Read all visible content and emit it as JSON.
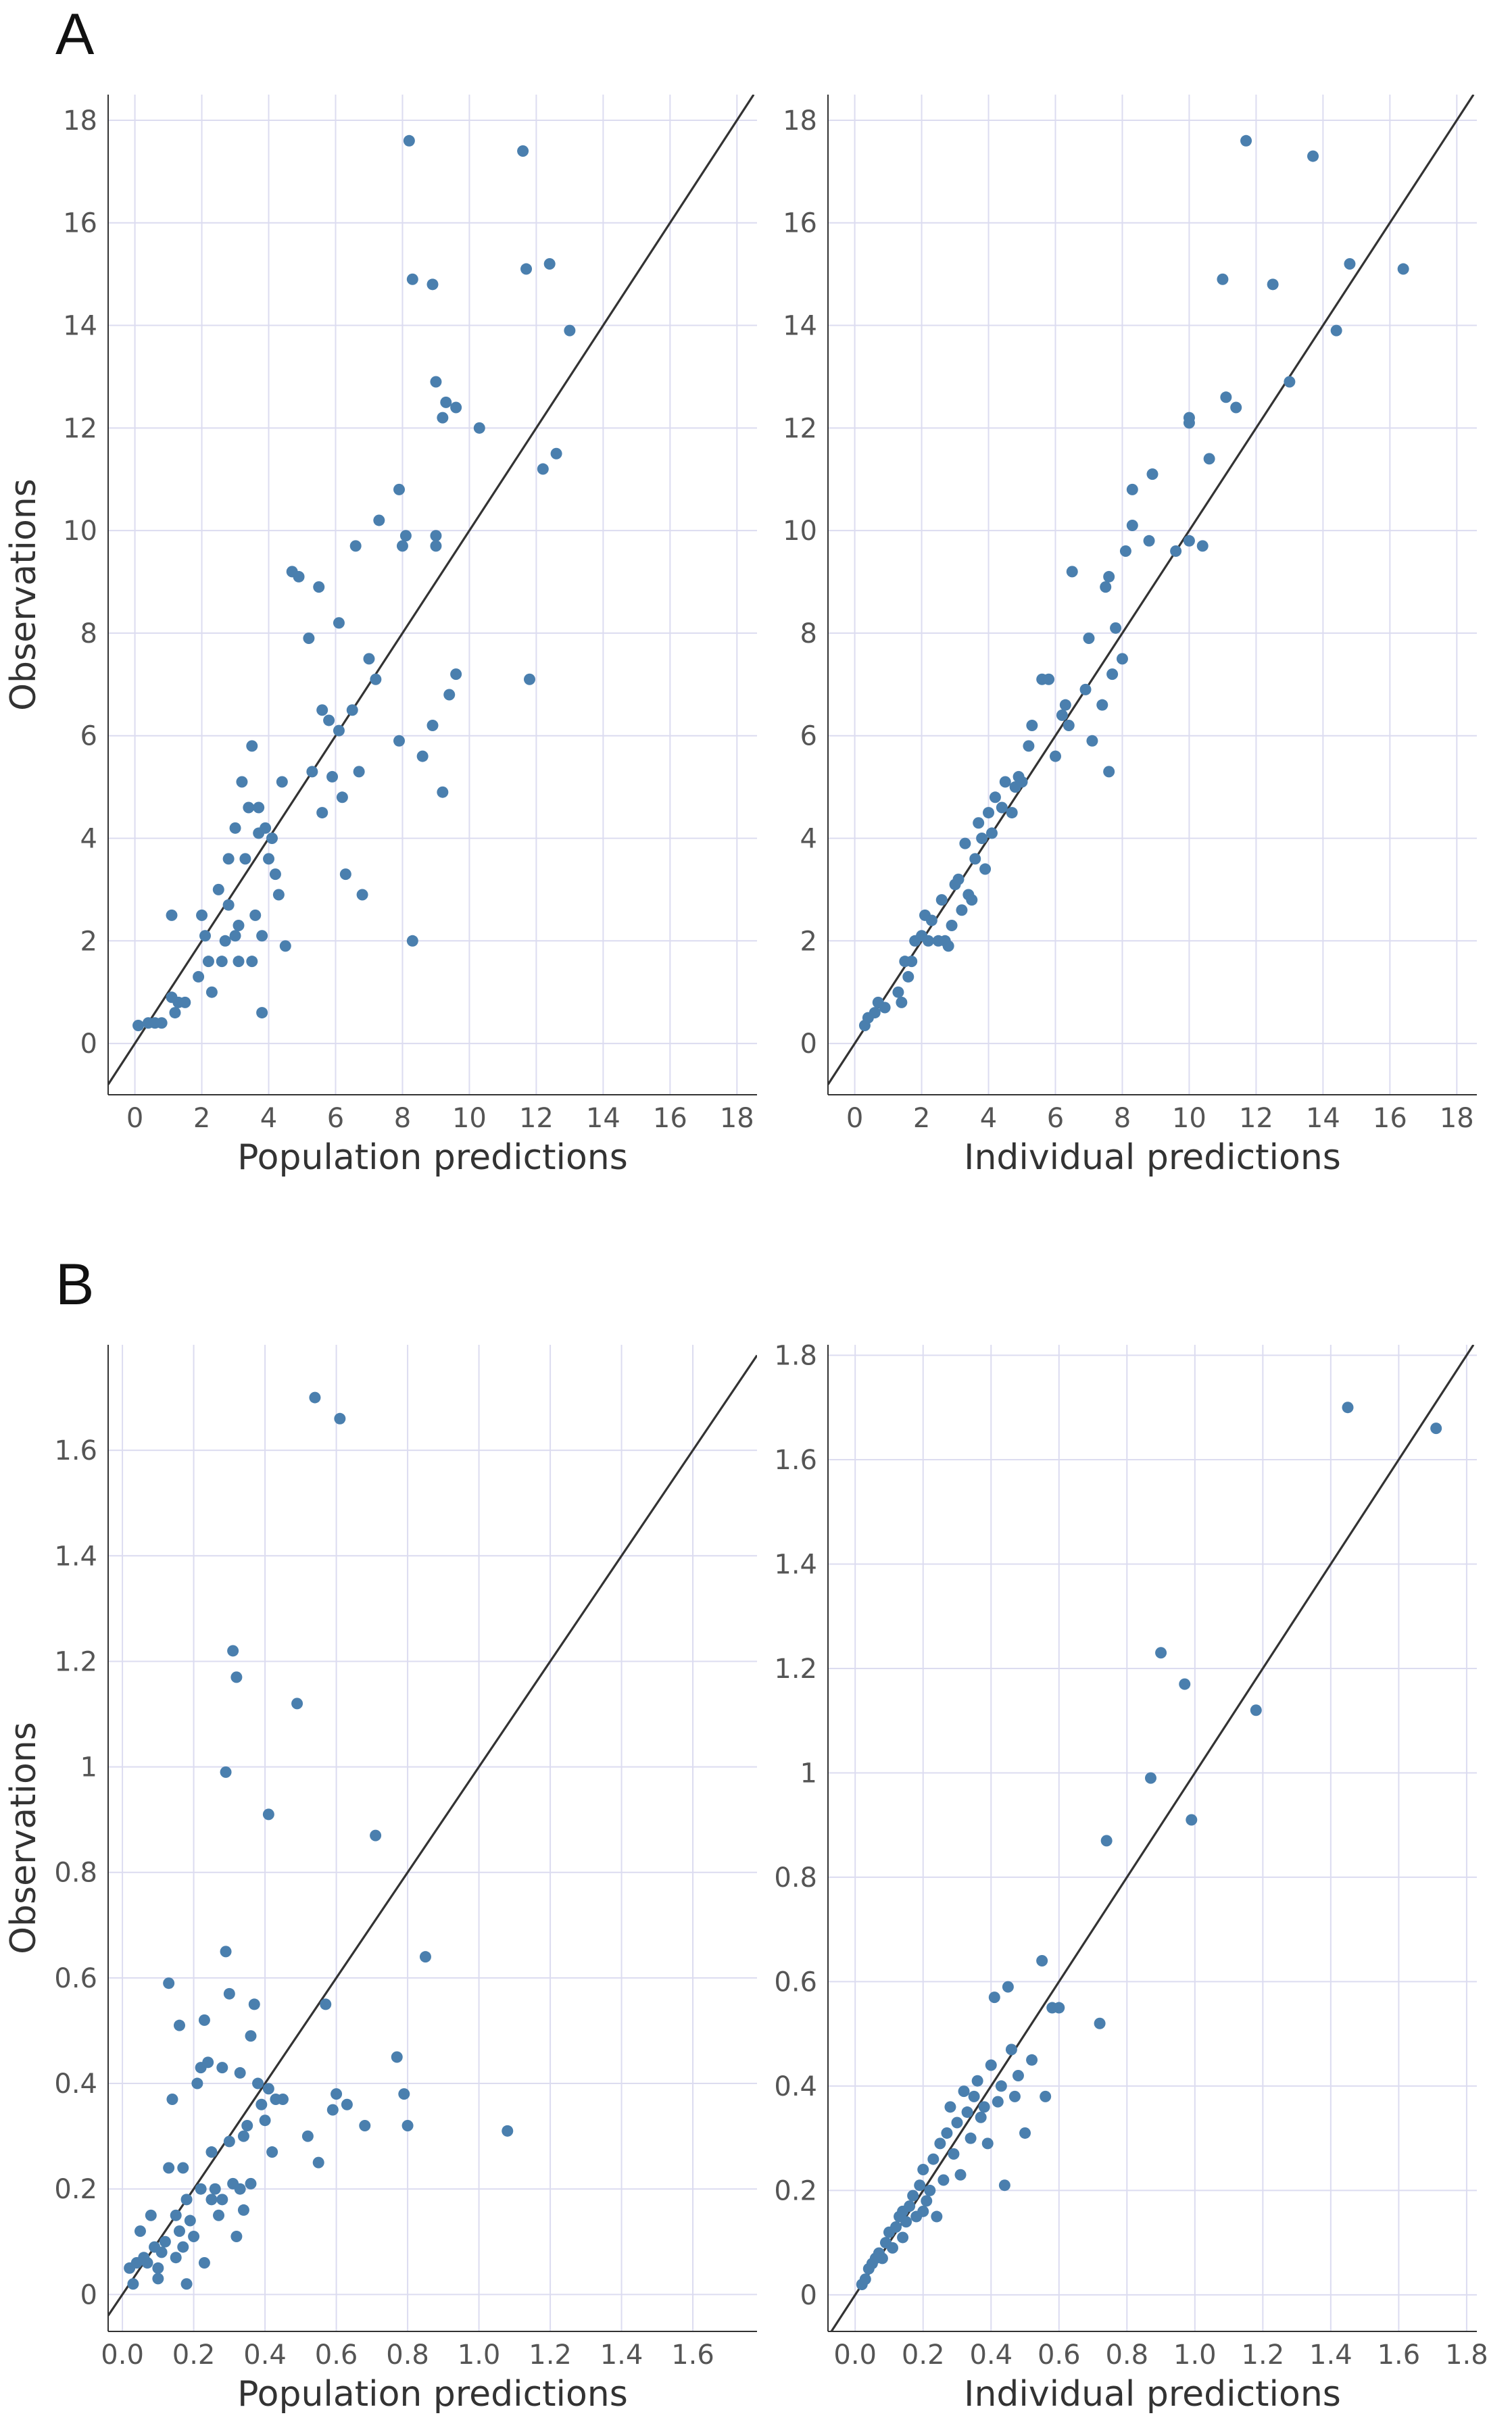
{
  "figure": {
    "panels": [
      {
        "id": "A",
        "label": "A"
      },
      {
        "id": "B",
        "label": "B"
      }
    ]
  },
  "chart_data": [
    {
      "type": "scatter",
      "panel": "A",
      "title": "",
      "xlabel": "Population predictions",
      "ylabel": "Observations",
      "xlim": [
        -0.8,
        18.6
      ],
      "ylim": [
        -1.0,
        18.5
      ],
      "xticks": [
        0,
        2,
        4,
        6,
        8,
        10,
        12,
        14,
        16,
        18
      ],
      "yticks": [
        0,
        2,
        4,
        6,
        8,
        10,
        12,
        14,
        16,
        18
      ],
      "xtick_labels": [
        "0",
        "2",
        "4",
        "6",
        "8",
        "10",
        "12",
        "14",
        "16",
        "18"
      ],
      "ytick_labels": [
        "0",
        "2",
        "4",
        "6",
        "8",
        "10",
        "12",
        "14",
        "16",
        "18"
      ],
      "identity_line": true,
      "grid": true,
      "point_color": "#4a7fae",
      "points": [
        [
          0.1,
          0.35
        ],
        [
          0.4,
          0.4
        ],
        [
          0.6,
          0.4
        ],
        [
          0.8,
          0.4
        ],
        [
          1.1,
          0.9
        ],
        [
          1.2,
          0.6
        ],
        [
          1.3,
          0.8
        ],
        [
          1.5,
          0.8
        ],
        [
          1.1,
          2.5
        ],
        [
          1.9,
          1.3
        ],
        [
          2.0,
          2.5
        ],
        [
          2.1,
          2.1
        ],
        [
          2.2,
          1.6
        ],
        [
          2.3,
          1.0
        ],
        [
          2.5,
          3.0
        ],
        [
          2.6,
          1.6
        ],
        [
          2.7,
          2.0
        ],
        [
          2.8,
          3.6
        ],
        [
          2.8,
          2.7
        ],
        [
          3.0,
          4.2
        ],
        [
          3.0,
          2.1
        ],
        [
          3.1,
          1.6
        ],
        [
          3.1,
          2.3
        ],
        [
          3.2,
          5.1
        ],
        [
          3.3,
          3.6
        ],
        [
          3.4,
          4.6
        ],
        [
          3.5,
          5.8
        ],
        [
          3.5,
          1.6
        ],
        [
          3.6,
          2.5
        ],
        [
          3.7,
          4.6
        ],
        [
          3.7,
          4.1
        ],
        [
          3.8,
          2.1
        ],
        [
          3.8,
          0.6
        ],
        [
          3.9,
          4.2
        ],
        [
          4.0,
          3.6
        ],
        [
          4.1,
          4.0
        ],
        [
          4.2,
          3.3
        ],
        [
          4.3,
          2.9
        ],
        [
          4.4,
          5.1
        ],
        [
          4.5,
          1.9
        ],
        [
          4.7,
          9.2
        ],
        [
          4.9,
          9.1
        ],
        [
          5.2,
          7.9
        ],
        [
          5.3,
          5.3
        ],
        [
          5.5,
          8.9
        ],
        [
          5.6,
          6.5
        ],
        [
          5.6,
          4.5
        ],
        [
          5.8,
          6.3
        ],
        [
          5.9,
          5.2
        ],
        [
          6.1,
          6.1
        ],
        [
          6.1,
          8.2
        ],
        [
          6.2,
          4.8
        ],
        [
          6.3,
          3.3
        ],
        [
          6.5,
          6.5
        ],
        [
          6.6,
          9.7
        ],
        [
          6.7,
          5.3
        ],
        [
          6.8,
          2.9
        ],
        [
          7.0,
          7.5
        ],
        [
          7.2,
          7.1
        ],
        [
          7.3,
          10.2
        ],
        [
          7.9,
          10.8
        ],
        [
          7.9,
          5.9
        ],
        [
          8.0,
          9.7
        ],
        [
          8.1,
          9.9
        ],
        [
          8.2,
          17.6
        ],
        [
          8.3,
          14.9
        ],
        [
          8.3,
          2.0
        ],
        [
          8.6,
          5.6
        ],
        [
          8.9,
          14.8
        ],
        [
          8.9,
          6.2
        ],
        [
          9.0,
          9.9
        ],
        [
          9.0,
          9.7
        ],
        [
          9.0,
          12.9
        ],
        [
          9.2,
          4.9
        ],
        [
          9.2,
          12.2
        ],
        [
          9.3,
          12.5
        ],
        [
          9.4,
          6.8
        ],
        [
          9.6,
          7.2
        ],
        [
          9.6,
          12.4
        ],
        [
          10.3,
          12.0
        ],
        [
          11.6,
          17.4
        ],
        [
          11.7,
          15.1
        ],
        [
          11.8,
          7.1
        ],
        [
          12.2,
          11.2
        ],
        [
          12.4,
          15.2
        ],
        [
          12.6,
          11.5
        ],
        [
          13.0,
          13.9
        ]
      ]
    },
    {
      "type": "scatter",
      "panel": "A",
      "title": "",
      "xlabel": "Individual predictions",
      "ylabel": "",
      "xlim": [
        -0.8,
        18.6
      ],
      "ylim": [
        -1.0,
        18.5
      ],
      "xticks": [
        0,
        2,
        4,
        6,
        8,
        10,
        12,
        14,
        16,
        18
      ],
      "yticks": [
        0,
        2,
        4,
        6,
        8,
        10,
        12,
        14,
        16,
        18
      ],
      "xtick_labels": [
        "0",
        "2",
        "4",
        "6",
        "8",
        "10",
        "12",
        "14",
        "16",
        "18"
      ],
      "ytick_labels": [
        "0",
        "2",
        "4",
        "6",
        "8",
        "10",
        "12",
        "14",
        "16",
        "18"
      ],
      "identity_line": true,
      "grid": true,
      "point_color": "#4a7fae",
      "points": [
        [
          0.3,
          0.35
        ],
        [
          0.4,
          0.5
        ],
        [
          0.6,
          0.6
        ],
        [
          0.7,
          0.8
        ],
        [
          0.9,
          0.7
        ],
        [
          1.3,
          1.0
        ],
        [
          1.4,
          0.8
        ],
        [
          1.5,
          1.6
        ],
        [
          1.6,
          1.3
        ],
        [
          1.7,
          1.6
        ],
        [
          1.8,
          2.0
        ],
        [
          2.0,
          2.1
        ],
        [
          2.1,
          2.5
        ],
        [
          2.2,
          2.0
        ],
        [
          2.3,
          2.4
        ],
        [
          2.5,
          2.0
        ],
        [
          2.6,
          2.8
        ],
        [
          2.7,
          2.0
        ],
        [
          2.8,
          1.9
        ],
        [
          2.9,
          2.3
        ],
        [
          3.0,
          3.1
        ],
        [
          3.1,
          3.2
        ],
        [
          3.2,
          2.6
        ],
        [
          3.3,
          3.9
        ],
        [
          3.4,
          2.9
        ],
        [
          3.5,
          2.8
        ],
        [
          3.6,
          3.6
        ],
        [
          3.7,
          4.3
        ],
        [
          3.8,
          4.0
        ],
        [
          3.9,
          3.4
        ],
        [
          4.0,
          4.5
        ],
        [
          4.1,
          4.1
        ],
        [
          4.2,
          4.8
        ],
        [
          4.4,
          4.6
        ],
        [
          4.5,
          5.1
        ],
        [
          4.7,
          4.5
        ],
        [
          4.8,
          5.0
        ],
        [
          4.9,
          5.2
        ],
        [
          5.0,
          5.1
        ],
        [
          5.2,
          5.8
        ],
        [
          5.3,
          6.2
        ],
        [
          5.6,
          7.1
        ],
        [
          5.8,
          7.1
        ],
        [
          6.0,
          5.6
        ],
        [
          6.2,
          6.4
        ],
        [
          6.3,
          6.6
        ],
        [
          6.4,
          6.2
        ],
        [
          6.5,
          9.2
        ],
        [
          6.9,
          6.9
        ],
        [
          7.0,
          7.9
        ],
        [
          7.1,
          5.9
        ],
        [
          7.4,
          6.6
        ],
        [
          7.5,
          8.9
        ],
        [
          7.6,
          9.1
        ],
        [
          7.6,
          5.3
        ],
        [
          7.7,
          7.2
        ],
        [
          7.8,
          8.1
        ],
        [
          8.0,
          7.5
        ],
        [
          8.1,
          9.6
        ],
        [
          8.3,
          10.8
        ],
        [
          8.3,
          10.1
        ],
        [
          8.8,
          9.8
        ],
        [
          8.9,
          11.1
        ],
        [
          9.6,
          9.6
        ],
        [
          10.0,
          12.1
        ],
        [
          10.0,
          12.2
        ],
        [
          10.0,
          9.8
        ],
        [
          10.4,
          9.7
        ],
        [
          10.6,
          11.4
        ],
        [
          11.0,
          14.9
        ],
        [
          11.1,
          12.6
        ],
        [
          11.4,
          12.4
        ],
        [
          11.7,
          17.6
        ],
        [
          12.5,
          14.8
        ],
        [
          13.0,
          12.9
        ],
        [
          13.7,
          17.3
        ],
        [
          14.4,
          13.9
        ],
        [
          14.8,
          15.2
        ],
        [
          16.4,
          15.1
        ]
      ]
    },
    {
      "type": "scatter",
      "panel": "B",
      "title": "",
      "xlabel": "Population predictions",
      "ylabel": "Observations",
      "xlim": [
        -0.04,
        1.78
      ],
      "ylim": [
        -0.07,
        1.8
      ],
      "xticks": [
        0.0,
        0.2,
        0.4,
        0.6,
        0.8,
        1.0,
        1.2,
        1.4,
        1.6
      ],
      "yticks": [
        0,
        0.2,
        0.4,
        0.6,
        0.8,
        1.0,
        1.2,
        1.4,
        1.6
      ],
      "xtick_labels": [
        "0.0",
        "0.2",
        "0.4",
        "0.6",
        "0.8",
        "1.0",
        "1.2",
        "1.4",
        "1.6"
      ],
      "ytick_labels": [
        "0",
        "0.2",
        "0.4",
        "0.6",
        "0.8",
        "1",
        "1.2",
        "1.4",
        "1.6"
      ],
      "identity_line": true,
      "grid": true,
      "point_color": "#4a7fae",
      "points": [
        [
          0.02,
          0.05
        ],
        [
          0.03,
          0.02
        ],
        [
          0.04,
          0.06
        ],
        [
          0.05,
          0.12
        ],
        [
          0.06,
          0.07
        ],
        [
          0.07,
          0.06
        ],
        [
          0.08,
          0.15
        ],
        [
          0.09,
          0.09
        ],
        [
          0.1,
          0.05
        ],
        [
          0.1,
          0.03
        ],
        [
          0.11,
          0.08
        ],
        [
          0.12,
          0.1
        ],
        [
          0.13,
          0.24
        ],
        [
          0.13,
          0.59
        ],
        [
          0.14,
          0.37
        ],
        [
          0.15,
          0.07
        ],
        [
          0.15,
          0.15
        ],
        [
          0.16,
          0.51
        ],
        [
          0.16,
          0.12
        ],
        [
          0.17,
          0.09
        ],
        [
          0.17,
          0.24
        ],
        [
          0.18,
          0.18
        ],
        [
          0.18,
          0.02
        ],
        [
          0.19,
          0.14
        ],
        [
          0.2,
          0.11
        ],
        [
          0.21,
          0.4
        ],
        [
          0.22,
          0.43
        ],
        [
          0.22,
          0.2
        ],
        [
          0.23,
          0.52
        ],
        [
          0.23,
          0.06
        ],
        [
          0.24,
          0.44
        ],
        [
          0.25,
          0.27
        ],
        [
          0.25,
          0.18
        ],
        [
          0.26,
          0.2
        ],
        [
          0.27,
          0.15
        ],
        [
          0.28,
          0.43
        ],
        [
          0.28,
          0.18
        ],
        [
          0.29,
          0.65
        ],
        [
          0.29,
          0.99
        ],
        [
          0.3,
          0.29
        ],
        [
          0.3,
          0.57
        ],
        [
          0.31,
          1.22
        ],
        [
          0.31,
          0.21
        ],
        [
          0.32,
          1.17
        ],
        [
          0.32,
          0.11
        ],
        [
          0.33,
          0.42
        ],
        [
          0.33,
          0.2
        ],
        [
          0.34,
          0.16
        ],
        [
          0.34,
          0.3
        ],
        [
          0.35,
          0.32
        ],
        [
          0.36,
          0.21
        ],
        [
          0.36,
          0.49
        ],
        [
          0.37,
          0.55
        ],
        [
          0.38,
          0.4
        ],
        [
          0.39,
          0.36
        ],
        [
          0.4,
          0.33
        ],
        [
          0.41,
          0.91
        ],
        [
          0.41,
          0.39
        ],
        [
          0.42,
          0.27
        ],
        [
          0.43,
          0.37
        ],
        [
          0.45,
          0.37
        ],
        [
          0.49,
          1.12
        ],
        [
          0.52,
          0.3
        ],
        [
          0.54,
          1.7
        ],
        [
          0.55,
          0.25
        ],
        [
          0.57,
          0.55
        ],
        [
          0.59,
          0.35
        ],
        [
          0.6,
          0.38
        ],
        [
          0.61,
          1.66
        ],
        [
          0.63,
          0.36
        ],
        [
          0.68,
          0.32
        ],
        [
          0.71,
          0.87
        ],
        [
          0.77,
          0.45
        ],
        [
          0.79,
          0.38
        ],
        [
          0.8,
          0.32
        ],
        [
          0.85,
          0.64
        ],
        [
          1.08,
          0.31
        ]
      ]
    },
    {
      "type": "scatter",
      "panel": "B",
      "title": "",
      "xlabel": "Individual predictions",
      "ylabel": "",
      "xlim": [
        -0.08,
        1.83
      ],
      "ylim": [
        -0.07,
        1.82
      ],
      "xticks": [
        0.0,
        0.2,
        0.4,
        0.6,
        0.8,
        1.0,
        1.2,
        1.4,
        1.6,
        1.8
      ],
      "yticks": [
        0,
        0.2,
        0.4,
        0.6,
        0.8,
        1.0,
        1.2,
        1.4,
        1.6,
        1.8
      ],
      "xtick_labels": [
        "0.0",
        "0.2",
        "0.4",
        "0.6",
        "0.8",
        "1.0",
        "1.2",
        "1.4",
        "1.6",
        "1.8"
      ],
      "ytick_labels": [
        "0",
        "0.2",
        "0.4",
        "0.6",
        "0.8",
        "1",
        "1.2",
        "1.4",
        "1.6",
        "1.8"
      ],
      "identity_line": true,
      "grid": true,
      "point_color": "#4a7fae",
      "points": [
        [
          0.02,
          0.02
        ],
        [
          0.03,
          0.03
        ],
        [
          0.04,
          0.05
        ],
        [
          0.05,
          0.06
        ],
        [
          0.06,
          0.07
        ],
        [
          0.07,
          0.08
        ],
        [
          0.08,
          0.07
        ],
        [
          0.09,
          0.1
        ],
        [
          0.1,
          0.12
        ],
        [
          0.11,
          0.09
        ],
        [
          0.12,
          0.13
        ],
        [
          0.13,
          0.15
        ],
        [
          0.14,
          0.11
        ],
        [
          0.14,
          0.16
        ],
        [
          0.15,
          0.14
        ],
        [
          0.16,
          0.17
        ],
        [
          0.17,
          0.19
        ],
        [
          0.18,
          0.15
        ],
        [
          0.19,
          0.21
        ],
        [
          0.2,
          0.16
        ],
        [
          0.2,
          0.24
        ],
        [
          0.21,
          0.18
        ],
        [
          0.22,
          0.2
        ],
        [
          0.23,
          0.26
        ],
        [
          0.24,
          0.15
        ],
        [
          0.25,
          0.29
        ],
        [
          0.26,
          0.22
        ],
        [
          0.27,
          0.31
        ],
        [
          0.28,
          0.36
        ],
        [
          0.29,
          0.27
        ],
        [
          0.3,
          0.33
        ],
        [
          0.31,
          0.23
        ],
        [
          0.32,
          0.39
        ],
        [
          0.33,
          0.35
        ],
        [
          0.34,
          0.3
        ],
        [
          0.35,
          0.38
        ],
        [
          0.36,
          0.41
        ],
        [
          0.37,
          0.34
        ],
        [
          0.38,
          0.36
        ],
        [
          0.39,
          0.29
        ],
        [
          0.4,
          0.44
        ],
        [
          0.41,
          0.57
        ],
        [
          0.42,
          0.37
        ],
        [
          0.43,
          0.4
        ],
        [
          0.44,
          0.21
        ],
        [
          0.45,
          0.59
        ],
        [
          0.46,
          0.47
        ],
        [
          0.47,
          0.38
        ],
        [
          0.48,
          0.42
        ],
        [
          0.5,
          0.31
        ],
        [
          0.52,
          0.45
        ],
        [
          0.55,
          0.64
        ],
        [
          0.56,
          0.38
        ],
        [
          0.58,
          0.55
        ],
        [
          0.6,
          0.55
        ],
        [
          0.72,
          0.52
        ],
        [
          0.74,
          0.87
        ],
        [
          0.87,
          0.99
        ],
        [
          0.9,
          1.23
        ],
        [
          0.97,
          1.17
        ],
        [
          0.99,
          0.91
        ],
        [
          1.18,
          1.12
        ],
        [
          1.45,
          1.7
        ],
        [
          1.71,
          1.66
        ]
      ]
    }
  ]
}
